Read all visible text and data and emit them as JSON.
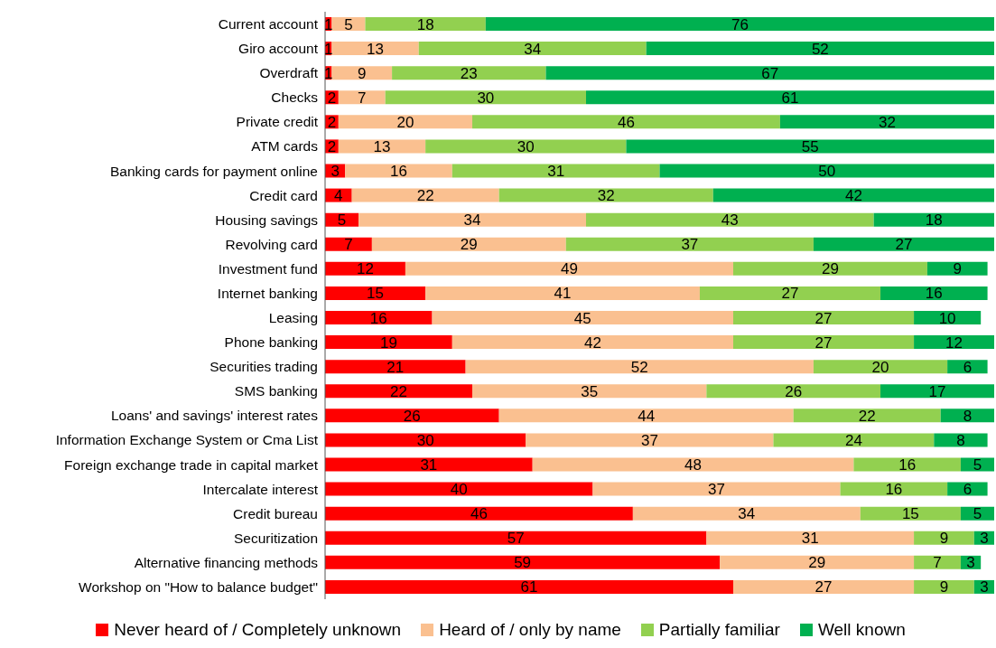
{
  "chart_data": {
    "type": "bar",
    "orientation": "horizontal",
    "stacked": true,
    "data_labels": true,
    "legend": "bottom",
    "tick_labels": "y",
    "categories": [
      "Current account",
      "Giro account",
      "Overdraft",
      "Checks",
      "Private credit",
      "ATM cards",
      "Banking cards for payment online",
      "Credit card",
      "Housing savings",
      "Revolving card",
      "Investment fund",
      "Internet banking",
      "Leasing",
      "Phone banking",
      "Securities trading",
      "SMS banking",
      "Loans' and savings' interest rates",
      "Information Exchange System or Cma List",
      "Foreign exchange trade in capital market",
      "Intercalate interest",
      "Credit bureau",
      "Securitization",
      "Alternative financing methods",
      "Workshop on \"How to balance budget\""
    ],
    "xlim": [
      0,
      100
    ],
    "series": [
      {
        "name": "Never heard of / Completely unknown",
        "color": "#ff0000",
        "values": [
          1,
          1,
          1,
          2,
          2,
          2,
          3,
          4,
          5,
          7,
          12,
          15,
          16,
          19,
          21,
          22,
          26,
          30,
          31,
          40,
          46,
          57,
          59,
          61
        ]
      },
      {
        "name": "Heard of / only by name",
        "color": "#fac090",
        "values": [
          5,
          13,
          9,
          7,
          20,
          13,
          16,
          22,
          34,
          29,
          49,
          41,
          45,
          42,
          52,
          35,
          44,
          37,
          48,
          37,
          34,
          31,
          29,
          27
        ]
      },
      {
        "name": "Partially familiar",
        "color": "#92d050",
        "values": [
          18,
          34,
          23,
          30,
          46,
          30,
          31,
          32,
          43,
          37,
          29,
          27,
          27,
          27,
          20,
          26,
          22,
          24,
          16,
          16,
          15,
          9,
          7,
          9
        ]
      },
      {
        "name": "Well known",
        "color": "#00b050",
        "values": [
          76,
          52,
          67,
          61,
          32,
          55,
          50,
          42,
          18,
          27,
          9,
          16,
          10,
          12,
          6,
          17,
          8,
          8,
          5,
          6,
          5,
          3,
          3,
          3
        ]
      }
    ]
  }
}
